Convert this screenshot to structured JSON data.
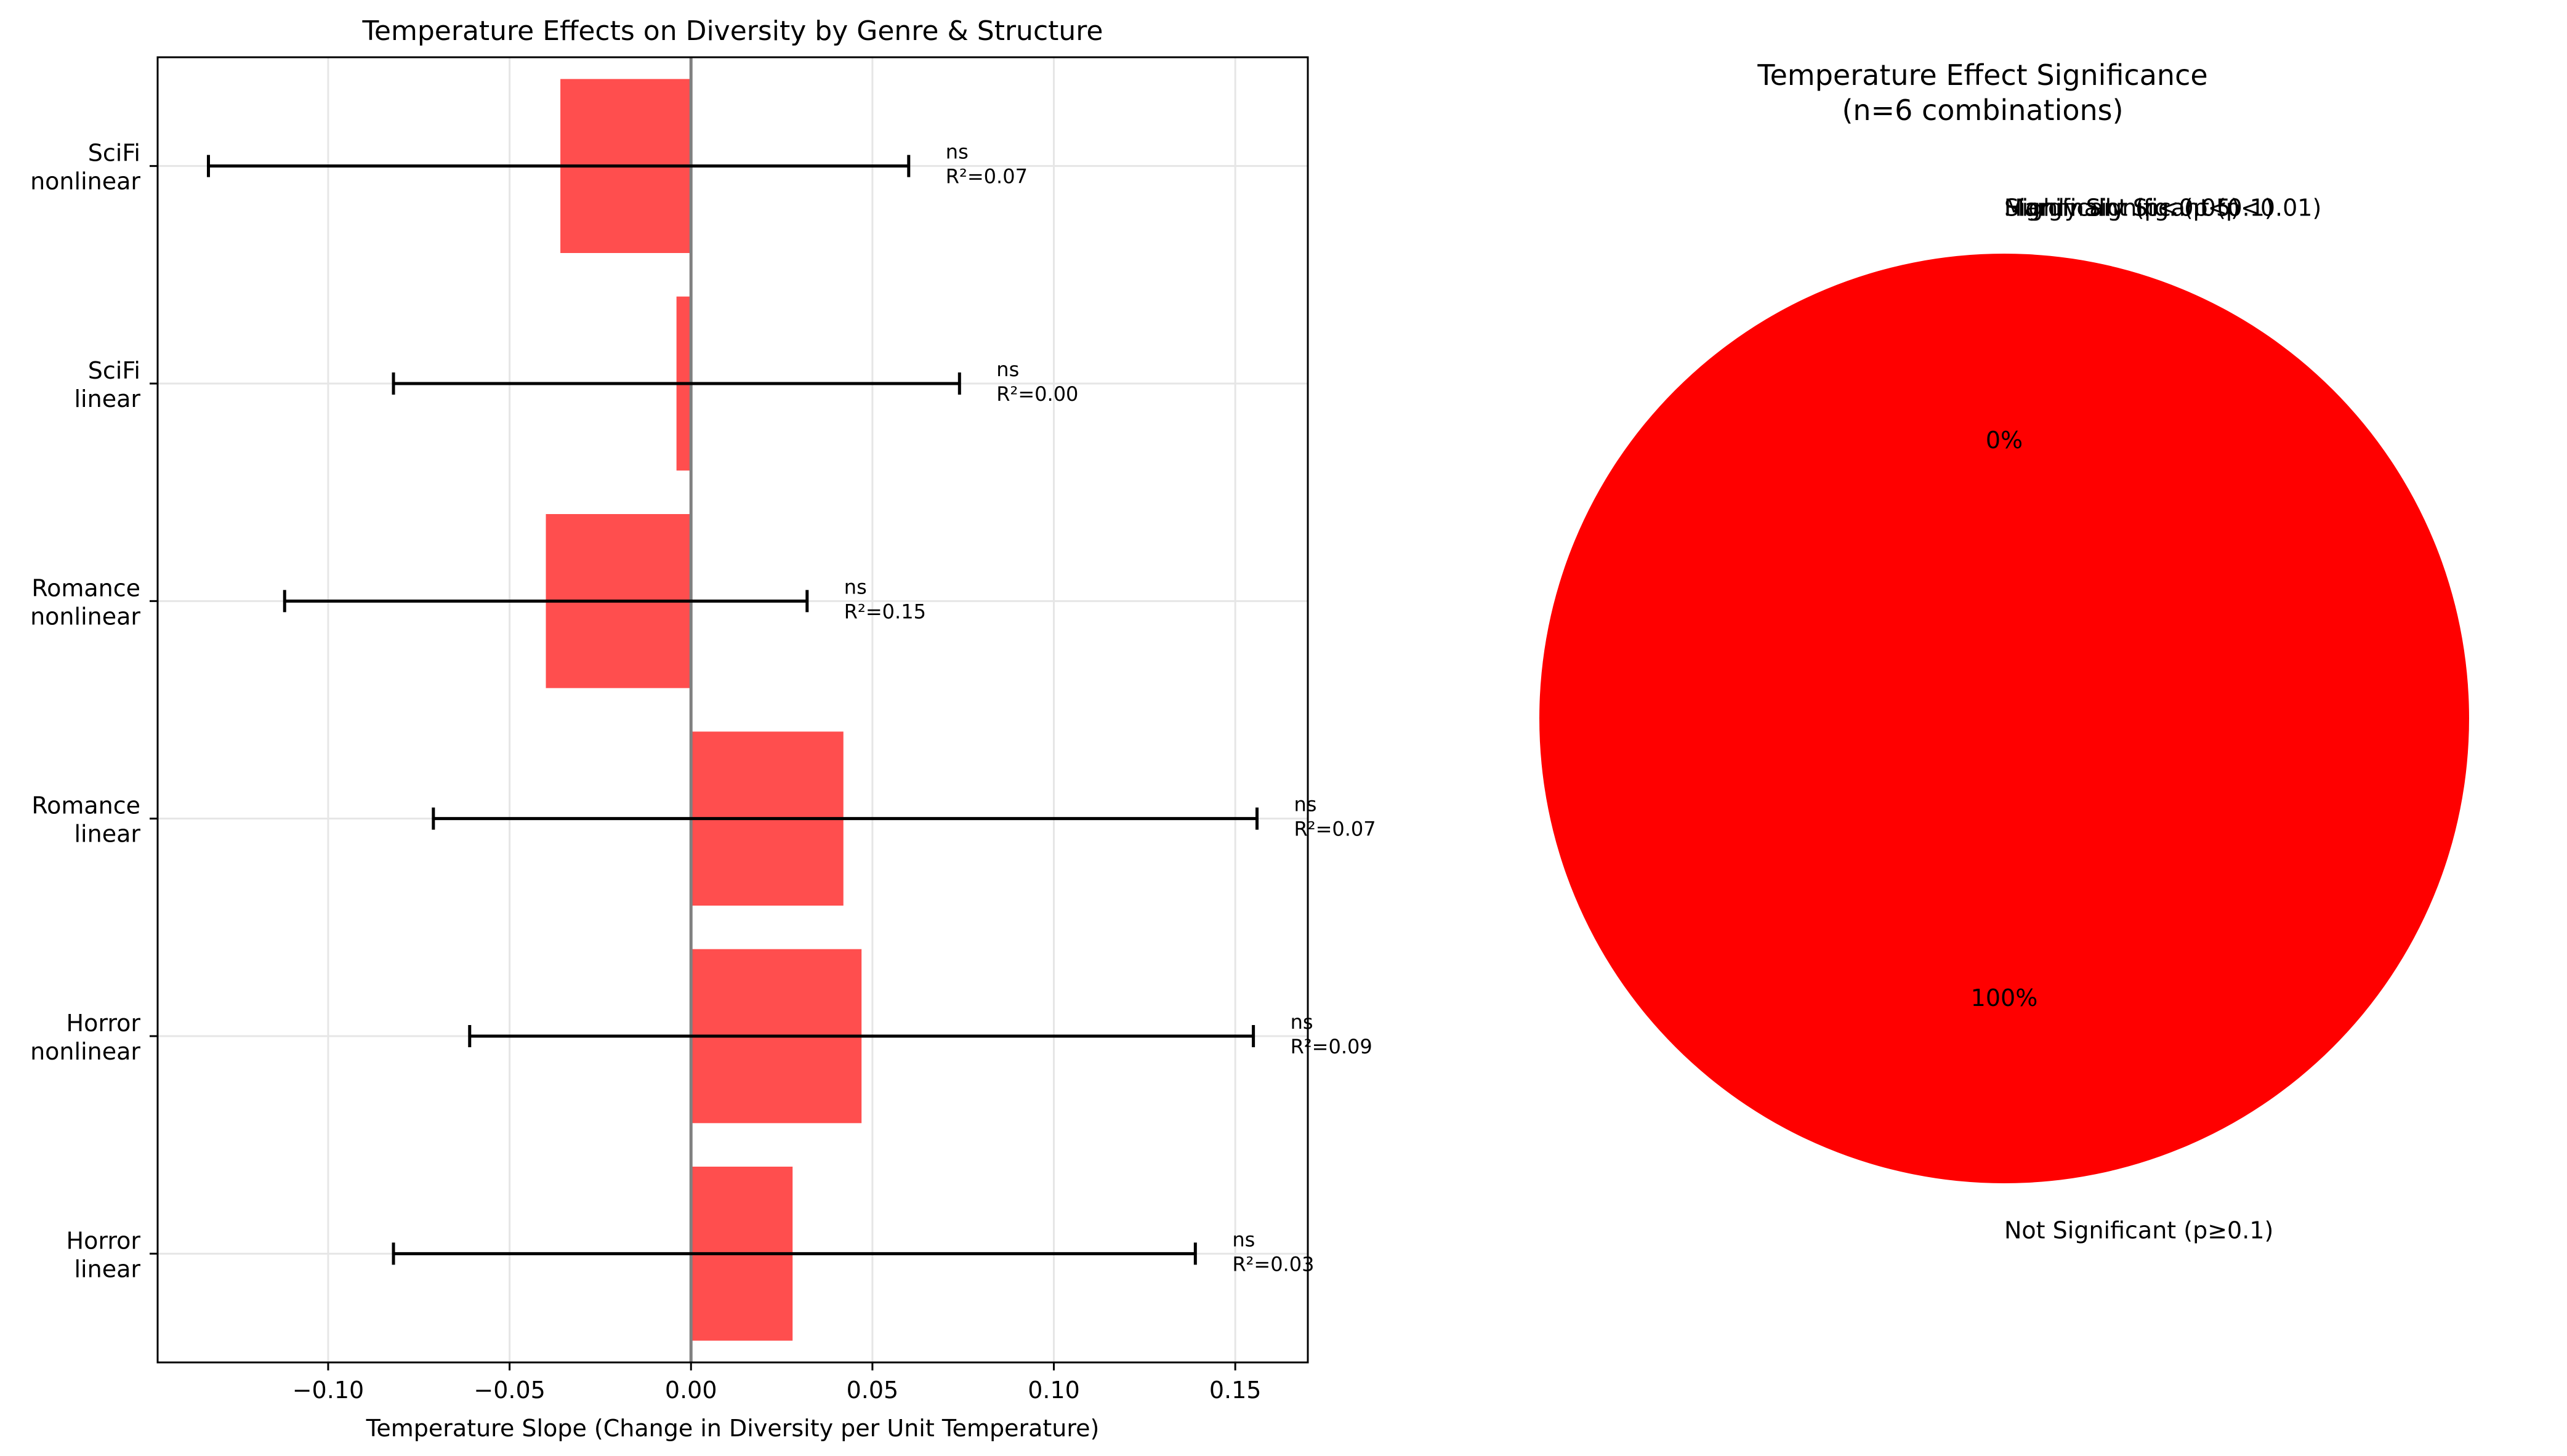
{
  "chart_data": [
    {
      "type": "bar",
      "orientation": "horizontal",
      "title": "Temperature Effects on Diversity by Genre & Structure",
      "xlabel": "Temperature Slope (Change in Diversity per Unit Temperature)",
      "ylabel": "",
      "xlim": [
        -0.147,
        0.17
      ],
      "xticks": [
        -0.1,
        -0.05,
        0.0,
        0.05,
        0.1,
        0.15
      ],
      "xtick_labels": [
        "−0.10",
        "−0.05",
        "0.00",
        "0.05",
        "0.10",
        "0.15"
      ],
      "grid": true,
      "zero_line": true,
      "bar_color": "#ff4a4a",
      "categories": [
        [
          "SciFi",
          "nonlinear"
        ],
        [
          "SciFi",
          "linear"
        ],
        [
          "Romance",
          "nonlinear"
        ],
        [
          "Romance",
          "linear"
        ],
        [
          "Horror",
          "nonlinear"
        ],
        [
          "Horror",
          "linear"
        ]
      ],
      "values": [
        -0.036,
        -0.004,
        -0.04,
        0.042,
        0.047,
        0.028
      ],
      "error_low": [
        -0.133,
        -0.082,
        -0.112,
        -0.071,
        -0.061,
        -0.082
      ],
      "error_high": [
        0.06,
        0.074,
        0.032,
        0.156,
        0.155,
        0.139
      ],
      "significance": [
        "ns",
        "ns",
        "ns",
        "ns",
        "ns",
        "ns"
      ],
      "r2_labels": [
        "R²=0.07",
        "R²=0.00",
        "R²=0.15",
        "R²=0.07",
        "R²=0.09",
        "R²=0.03"
      ]
    },
    {
      "type": "pie",
      "title": "Temperature Effect Significance",
      "subtitle": "(n=6 combinations)",
      "slices": [
        {
          "label": "Highly Significant (p<0.01)",
          "value": 0,
          "pct_label": "",
          "color": "#006400"
        },
        {
          "label": "Significant (p<0.05)",
          "value": 0,
          "pct_label": "",
          "color": "#90ee90"
        },
        {
          "label": "Marginally Sig. (p<0.1)",
          "value": 0,
          "pct_label": "0%",
          "color": "#ffa500"
        },
        {
          "label": "Not Significant (p≥0.1)",
          "value": 100,
          "pct_label": "100%",
          "color": "#ff0000"
        }
      ]
    }
  ]
}
